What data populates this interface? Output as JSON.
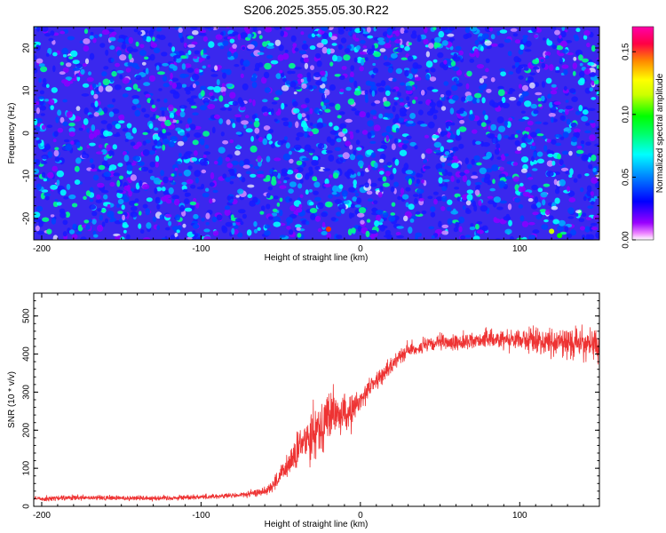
{
  "figure": {
    "title": "S206.2025.355.05.30.R22"
  },
  "chart_data": [
    {
      "type": "heatmap",
      "title": "S206.2025.355.05.30.R22",
      "xlabel": "Height of straight line (km)",
      "ylabel": "Frequency (Hz)",
      "xlim": [
        -205,
        150
      ],
      "ylim": [
        -25,
        25
      ],
      "x_ticks": [
        -200,
        -100,
        0,
        100
      ],
      "x_tick_labels": [
        "-200",
        "-100",
        "0",
        "100"
      ],
      "y_ticks": [
        -20,
        -10,
        0,
        10,
        20
      ],
      "y_tick_labels": [
        "-20",
        "-10",
        "0",
        "10",
        "20"
      ],
      "description": "noise-like spectral amplitude, mostly 0.02-0.06",
      "colorbar": {
        "label": "Normalized spectral amplitude",
        "range": [
          0,
          0.17
        ],
        "ticks": [
          0,
          0.05,
          0.1,
          0.15
        ],
        "tick_labels": [
          "0.00",
          "0.05",
          "0.10",
          "0.15"
        ],
        "colormap": [
          "#ffffff",
          "#9900ff",
          "#0000ff",
          "#00ffff",
          "#00ff00",
          "#ffff00",
          "#ff8800",
          "#ff0044",
          "#ff00aa"
        ]
      }
    },
    {
      "type": "line",
      "xlabel": "Height of straight line (km)",
      "ylabel": "SNR (10 * v/v)",
      "xlim": [
        -205,
        150
      ],
      "ylim": [
        0,
        560
      ],
      "x_ticks": [
        -200,
        -100,
        0,
        100
      ],
      "x_tick_labels": [
        "-200",
        "-100",
        "0",
        "100"
      ],
      "y_ticks": [
        0,
        100,
        200,
        300,
        400,
        500
      ],
      "y_tick_labels": [
        "0",
        "100",
        "200",
        "300",
        "400",
        "500"
      ],
      "color": "#ee3333",
      "series": [
        {
          "name": "SNR",
          "x": [
            -205,
            -180,
            -150,
            -120,
            -100,
            -80,
            -70,
            -60,
            -55,
            -50,
            -45,
            -40,
            -35,
            -30,
            -25,
            -20,
            -15,
            -10,
            -5,
            0,
            5,
            10,
            15,
            20,
            25,
            30,
            40,
            50,
            60,
            80,
            100,
            120,
            140,
            150
          ],
          "values": [
            20,
            22,
            22,
            22,
            25,
            28,
            32,
            40,
            55,
            80,
            110,
            140,
            170,
            200,
            210,
            240,
            240,
            240,
            250,
            280,
            310,
            330,
            350,
            370,
            400,
            410,
            420,
            430,
            430,
            440,
            440,
            430,
            430,
            420
          ],
          "noise": [
            12,
            12,
            12,
            12,
            12,
            12,
            14,
            20,
            30,
            45,
            60,
            80,
            100,
            120,
            120,
            120,
            100,
            90,
            70,
            50,
            45,
            40,
            35,
            35,
            35,
            35,
            35,
            35,
            35,
            40,
            50,
            60,
            70,
            70
          ]
        }
      ]
    }
  ]
}
